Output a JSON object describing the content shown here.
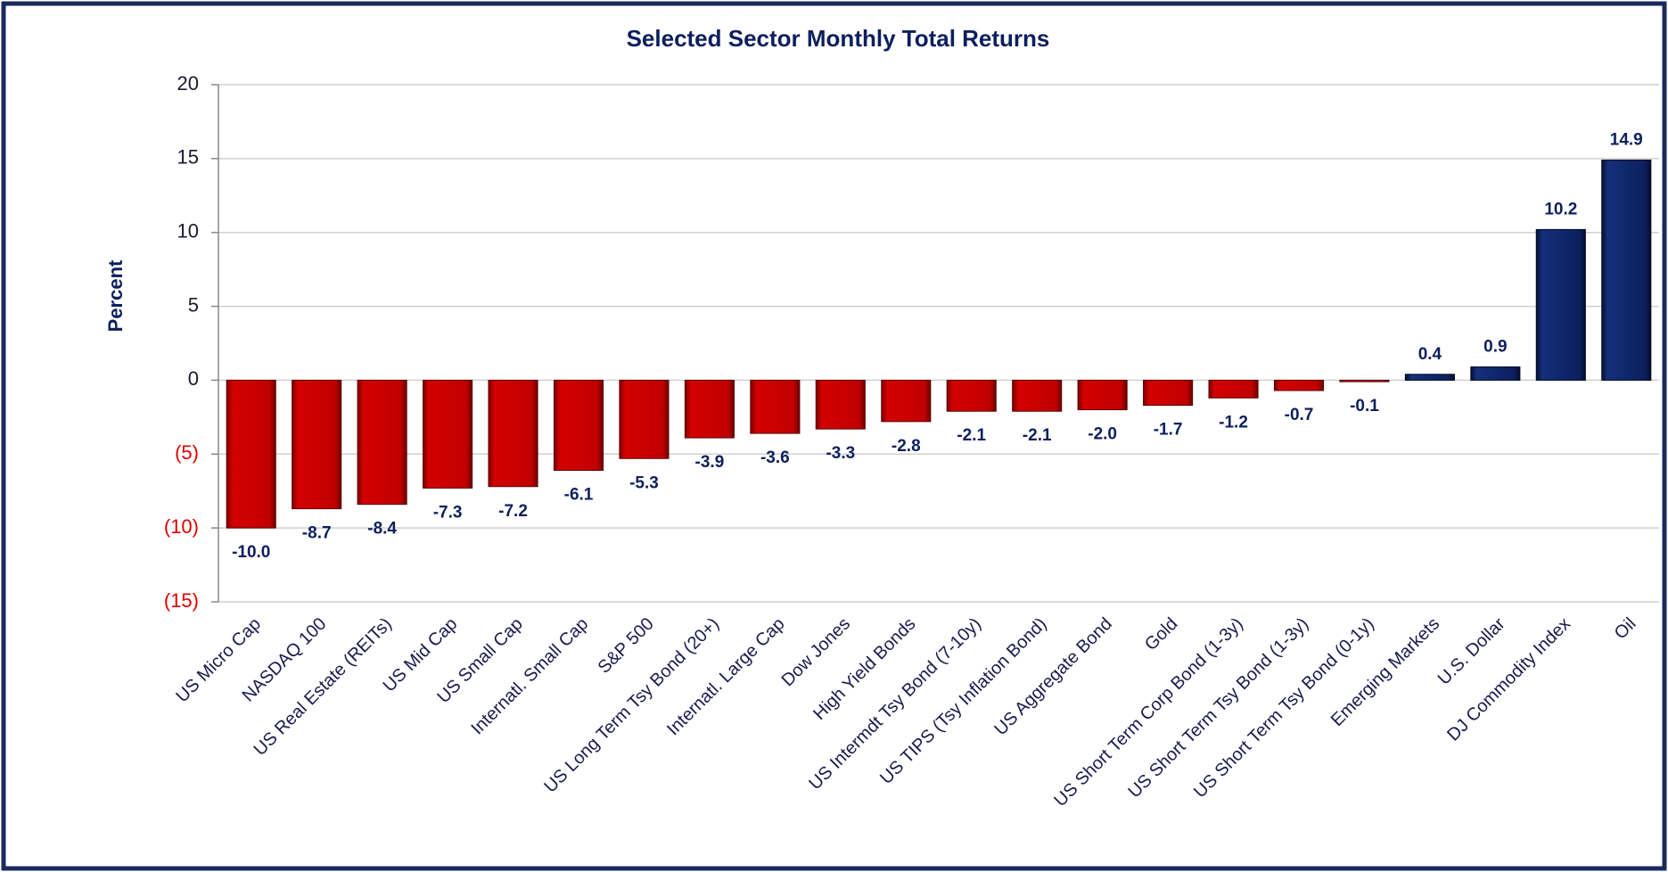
{
  "chart_data": {
    "type": "bar",
    "title": "Selected Sector Monthly Total Returns",
    "y_label": "Percent",
    "categories": [
      "US Micro Cap",
      "NASDAQ 100",
      "US Real Estate (REITs)",
      "US Mid Cap",
      "US Small Cap",
      "Internatl. Small Cap",
      "S&P 500",
      "US Long Term Tsy Bond (20+)",
      "Internatl. Large Cap",
      "Dow Jones",
      "High Yield Bonds",
      "US Intermdt Tsy Bond (7-10y)",
      "US TIPS (Tsy Inflation Bond)",
      "US Aggregate Bond",
      "Gold",
      "US Short Term Corp Bond (1-3y)",
      "US Short Term Tsy Bond (1-3y)",
      "US Short Term Tsy Bond (0-1y)",
      "Emerging Markets",
      "U.S. Dollar",
      "DJ Commodity Index",
      "Oil"
    ],
    "values": [
      -10.0,
      -8.7,
      -8.4,
      -7.3,
      -7.2,
      -6.1,
      -5.3,
      -3.9,
      -3.6,
      -3.3,
      -2.8,
      -2.1,
      -2.1,
      -2.0,
      -1.7,
      -1.2,
      -0.7,
      -0.1,
      0.4,
      0.9,
      10.2,
      14.9
    ],
    "value_labels": [
      "-10.0",
      "-8.7",
      "-8.4",
      "-7.3",
      "-7.2",
      "-6.1",
      "-5.3",
      "-3.9",
      "-3.6",
      "-3.3",
      "-2.8",
      "-2.1",
      "-2.1",
      "-2.0",
      "-1.7",
      "-1.2",
      "-0.7",
      "-0.1",
      "0.4",
      "0.9",
      "10.2",
      "14.9"
    ],
    "color_negative": "#c00000",
    "color_positive": "#0c1f5e",
    "negative_tick_color": "#e00000",
    "ylim": [
      -15,
      20
    ],
    "yticks": [
      {
        "value": -15,
        "label": "(15)"
      },
      {
        "value": -10,
        "label": "(10)"
      },
      {
        "value": -5,
        "label": "(5)"
      },
      0,
      5,
      10,
      15,
      20
    ],
    "grid": true
  }
}
